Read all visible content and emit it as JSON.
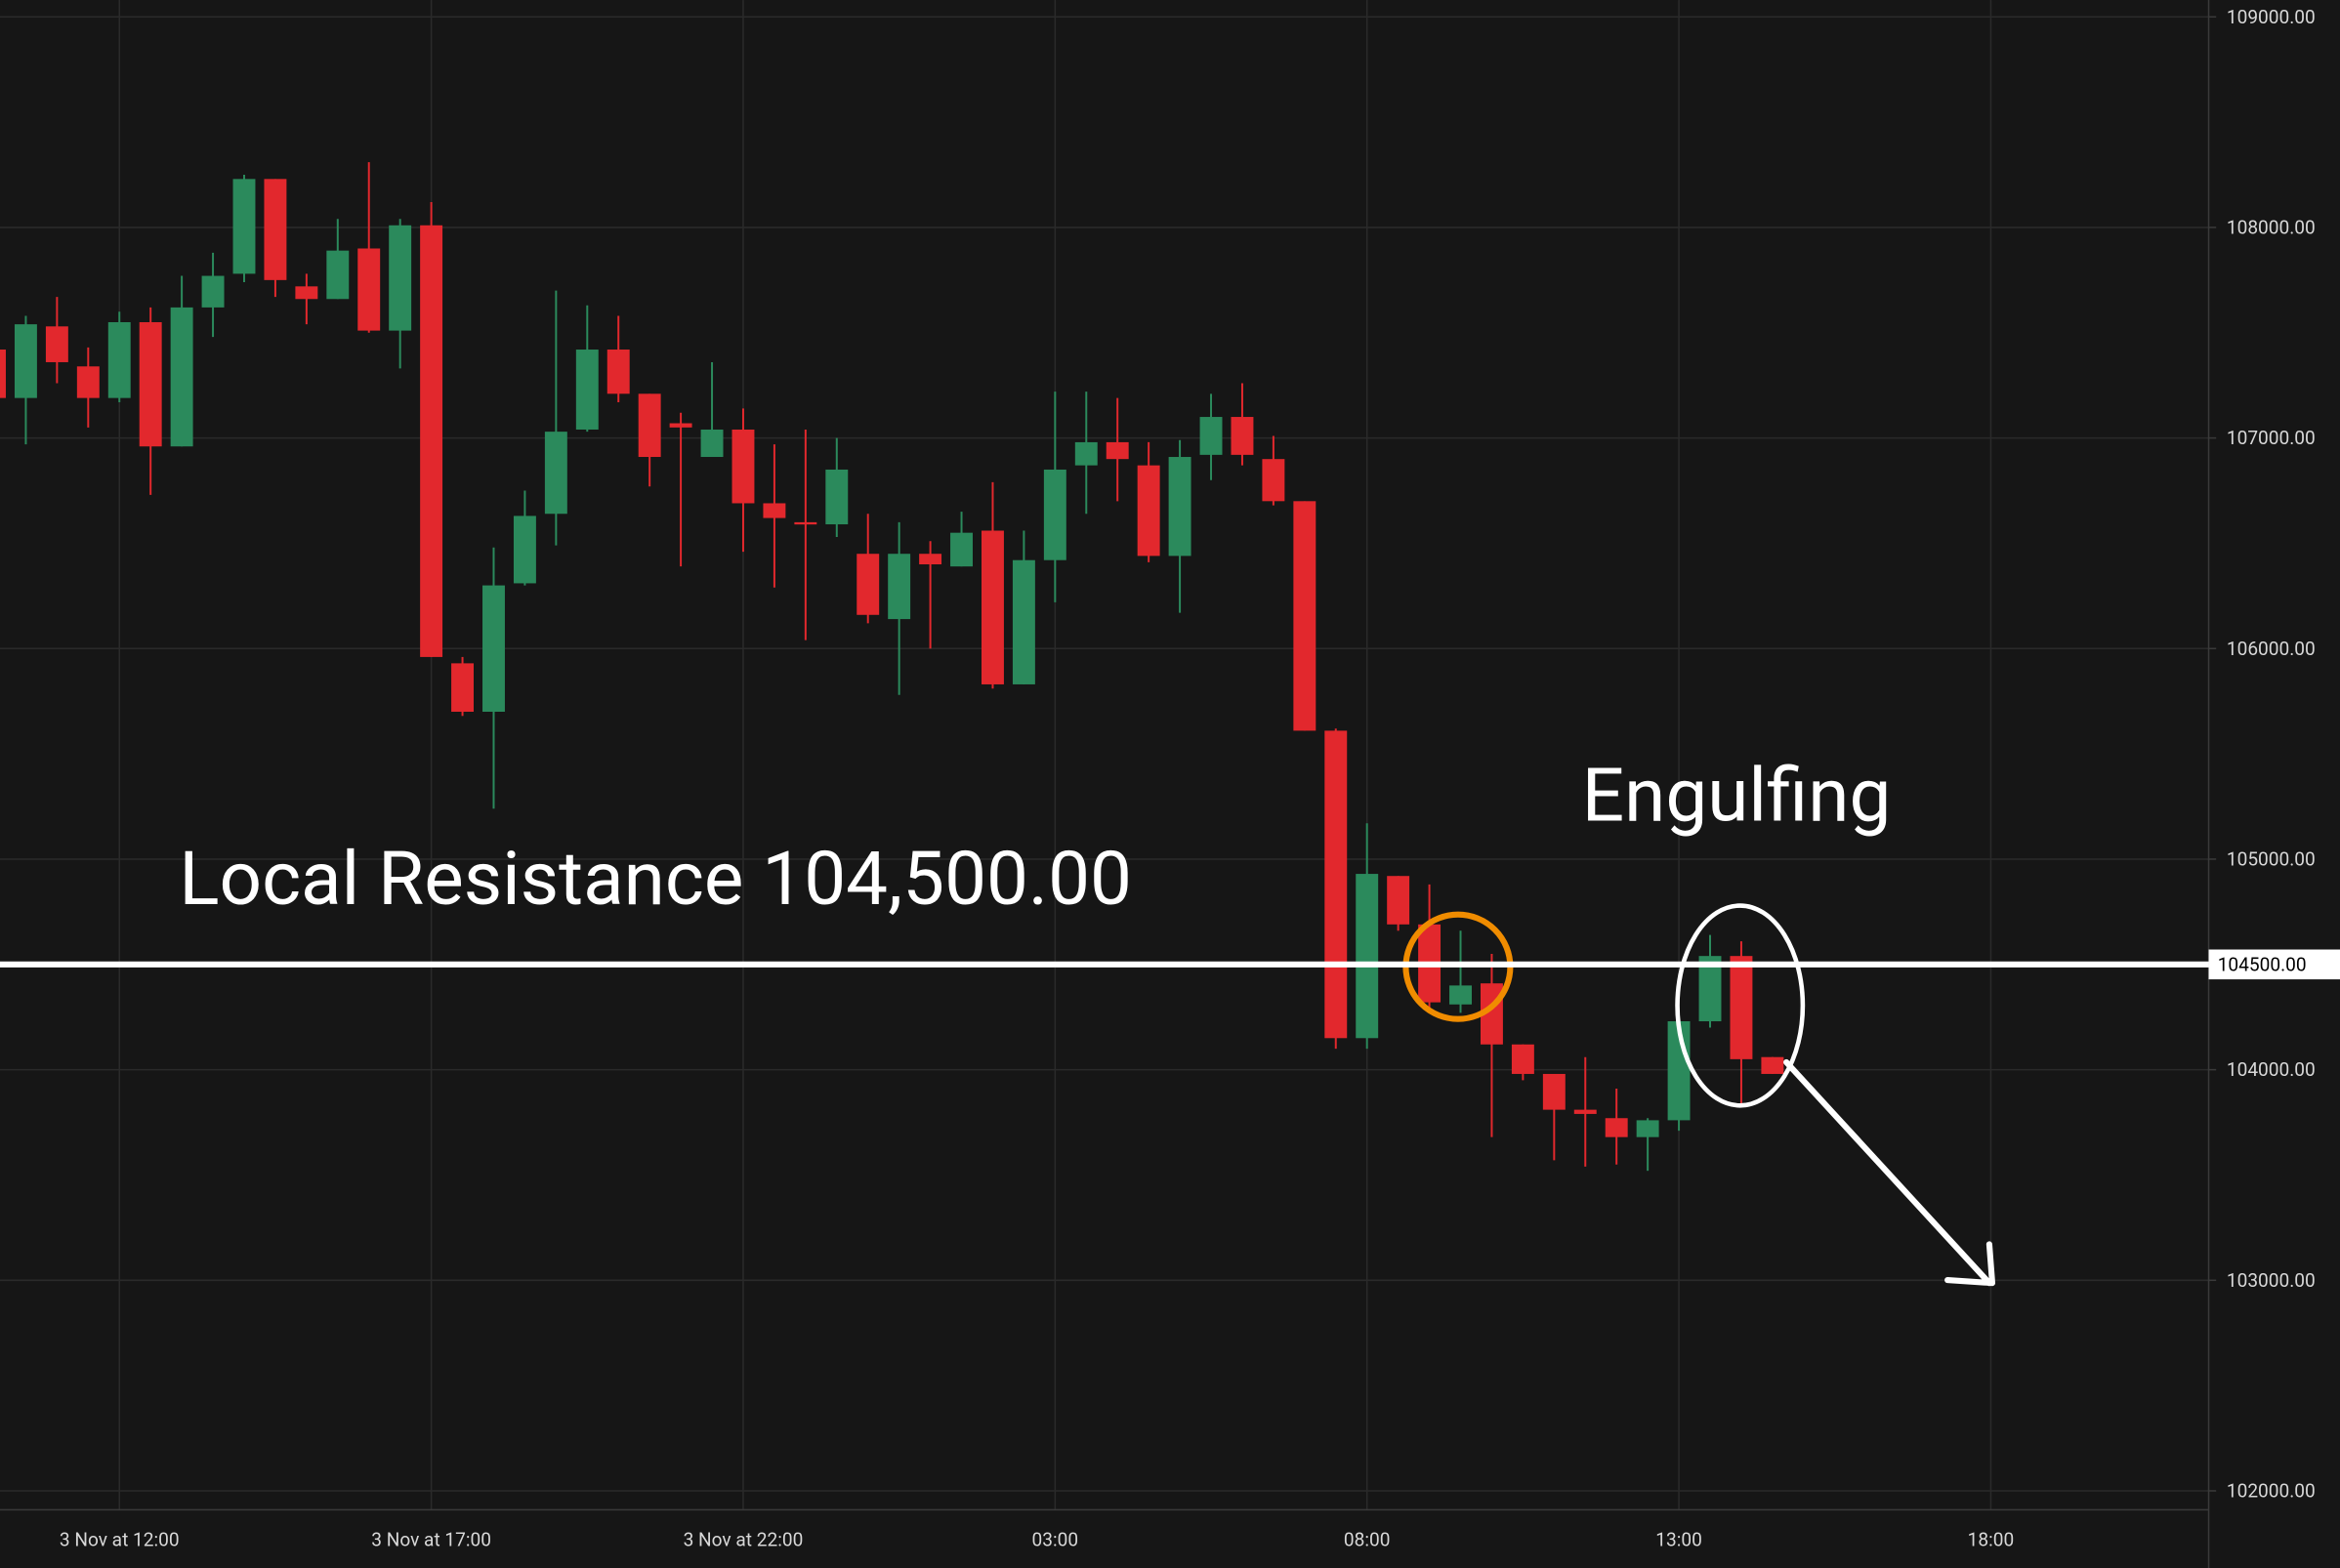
{
  "chart_data": {
    "type": "candlestick",
    "up_color": "#2b8a5c",
    "down_color": "#e2282d",
    "categories": [
      null,
      null,
      null,
      null,
      "3 Nov at 12:00",
      null,
      null,
      null,
      null,
      null,
      null,
      null,
      null,
      null,
      "3 Nov at 17:00",
      null,
      null,
      null,
      null,
      null,
      null,
      null,
      null,
      null,
      "3 Nov at 22:00",
      null,
      null,
      null,
      null,
      null,
      null,
      null,
      null,
      null,
      "03:00",
      null,
      null,
      null,
      null,
      null,
      null,
      null,
      null,
      null,
      "08:00",
      null,
      null,
      null,
      null,
      null,
      null,
      null,
      null,
      null,
      "13:00",
      null,
      null,
      null,
      null,
      null,
      null,
      null,
      null,
      null,
      "18:00",
      null,
      null,
      null,
      null,
      null,
      null
    ],
    "open": [
      107420,
      107190,
      107530,
      107340,
      107190,
      107550,
      106960,
      107620,
      107780,
      108230,
      107720,
      107660,
      107900,
      107510,
      108010,
      105930,
      105700,
      106310,
      106640,
      107040,
      107420,
      107210,
      107070,
      106910,
      107040,
      106690,
      106600,
      106590,
      106450,
      106140,
      106450,
      106390,
      106560,
      105830,
      106420,
      106870,
      106980,
      106870,
      106440,
      106920,
      107100,
      106900,
      106700,
      105610,
      104150,
      104920,
      104690,
      104310,
      104410,
      104120,
      103980,
      103810,
      103770,
      103680,
      103760,
      104230,
      104540,
      104060,
      null,
      null,
      null,
      null,
      null,
      null,
      null,
      null,
      null,
      null,
      null,
      null,
      null
    ],
    "high": [
      107420,
      107580,
      107670,
      107430,
      107600,
      107620,
      107770,
      107880,
      108250,
      108230,
      107780,
      108040,
      108310,
      108040,
      108120,
      105960,
      106480,
      106750,
      107700,
      107630,
      107580,
      107210,
      107120,
      107360,
      107140,
      106970,
      107040,
      107000,
      106640,
      106600,
      106510,
      106650,
      106790,
      106560,
      107220,
      107220,
      107190,
      106980,
      106990,
      107210,
      107260,
      107010,
      106700,
      105620,
      105170,
      104920,
      104880,
      104660,
      104550,
      104120,
      103980,
      104060,
      103910,
      103770,
      104230,
      104640,
      104610,
      104060,
      null,
      null,
      null,
      null,
      null,
      null,
      null,
      null,
      null,
      null,
      null,
      null,
      null
    ],
    "low": [
      107170,
      106970,
      107260,
      107050,
      107170,
      106730,
      106960,
      107480,
      107740,
      107670,
      107540,
      107660,
      107500,
      107330,
      105960,
      105680,
      105240,
      106300,
      106490,
      107030,
      107170,
      106770,
      106390,
      106910,
      106460,
      106290,
      106040,
      106530,
      106120,
      105780,
      106000,
      106390,
      105810,
      105830,
      106220,
      106640,
      106700,
      106410,
      106170,
      106800,
      106870,
      106680,
      105610,
      104100,
      104100,
      104660,
      104290,
      104270,
      103680,
      103950,
      103570,
      103540,
      103550,
      103520,
      103710,
      104200,
      103830,
      103980,
      null,
      null,
      null,
      null,
      null,
      null,
      null,
      null,
      null,
      null,
      null,
      null,
      null
    ],
    "close": [
      107190,
      107540,
      107360,
      107190,
      107550,
      106960,
      107620,
      107770,
      108230,
      107750,
      107660,
      107890,
      107510,
      108010,
      105960,
      105700,
      106300,
      106630,
      107030,
      107420,
      107210,
      106910,
      107050,
      107040,
      106690,
      106620,
      106590,
      106850,
      106160,
      106450,
      106400,
      106550,
      105830,
      106420,
      106850,
      106980,
      106900,
      106440,
      106910,
      107100,
      106920,
      106700,
      105610,
      104150,
      104930,
      104690,
      104320,
      104400,
      104120,
      103980,
      103810,
      103790,
      103680,
      103760,
      104230,
      104540,
      104050,
      103980,
      null,
      null,
      null,
      null,
      null,
      null,
      null,
      null,
      null,
      null,
      null,
      null,
      null
    ],
    "ylim": [
      101910,
      109080
    ],
    "yticks": [
      {
        "value": 102000,
        "label": "102000.00"
      },
      {
        "value": 103000,
        "label": "103000.00"
      },
      {
        "value": 104000,
        "label": "104000.00"
      },
      {
        "value": 105000,
        "label": "105000.00"
      },
      {
        "value": 106000,
        "label": "106000.00"
      },
      {
        "value": 107000,
        "label": "107000.00"
      },
      {
        "value": 108000,
        "label": "108000.00"
      },
      {
        "value": 109000,
        "label": "109000.00"
      }
    ],
    "grid": true,
    "resistance": {
      "value": 104500,
      "label": "104500.00"
    },
    "annotations": [
      "Local Resistance 104,500.00",
      "Engulfing"
    ]
  }
}
